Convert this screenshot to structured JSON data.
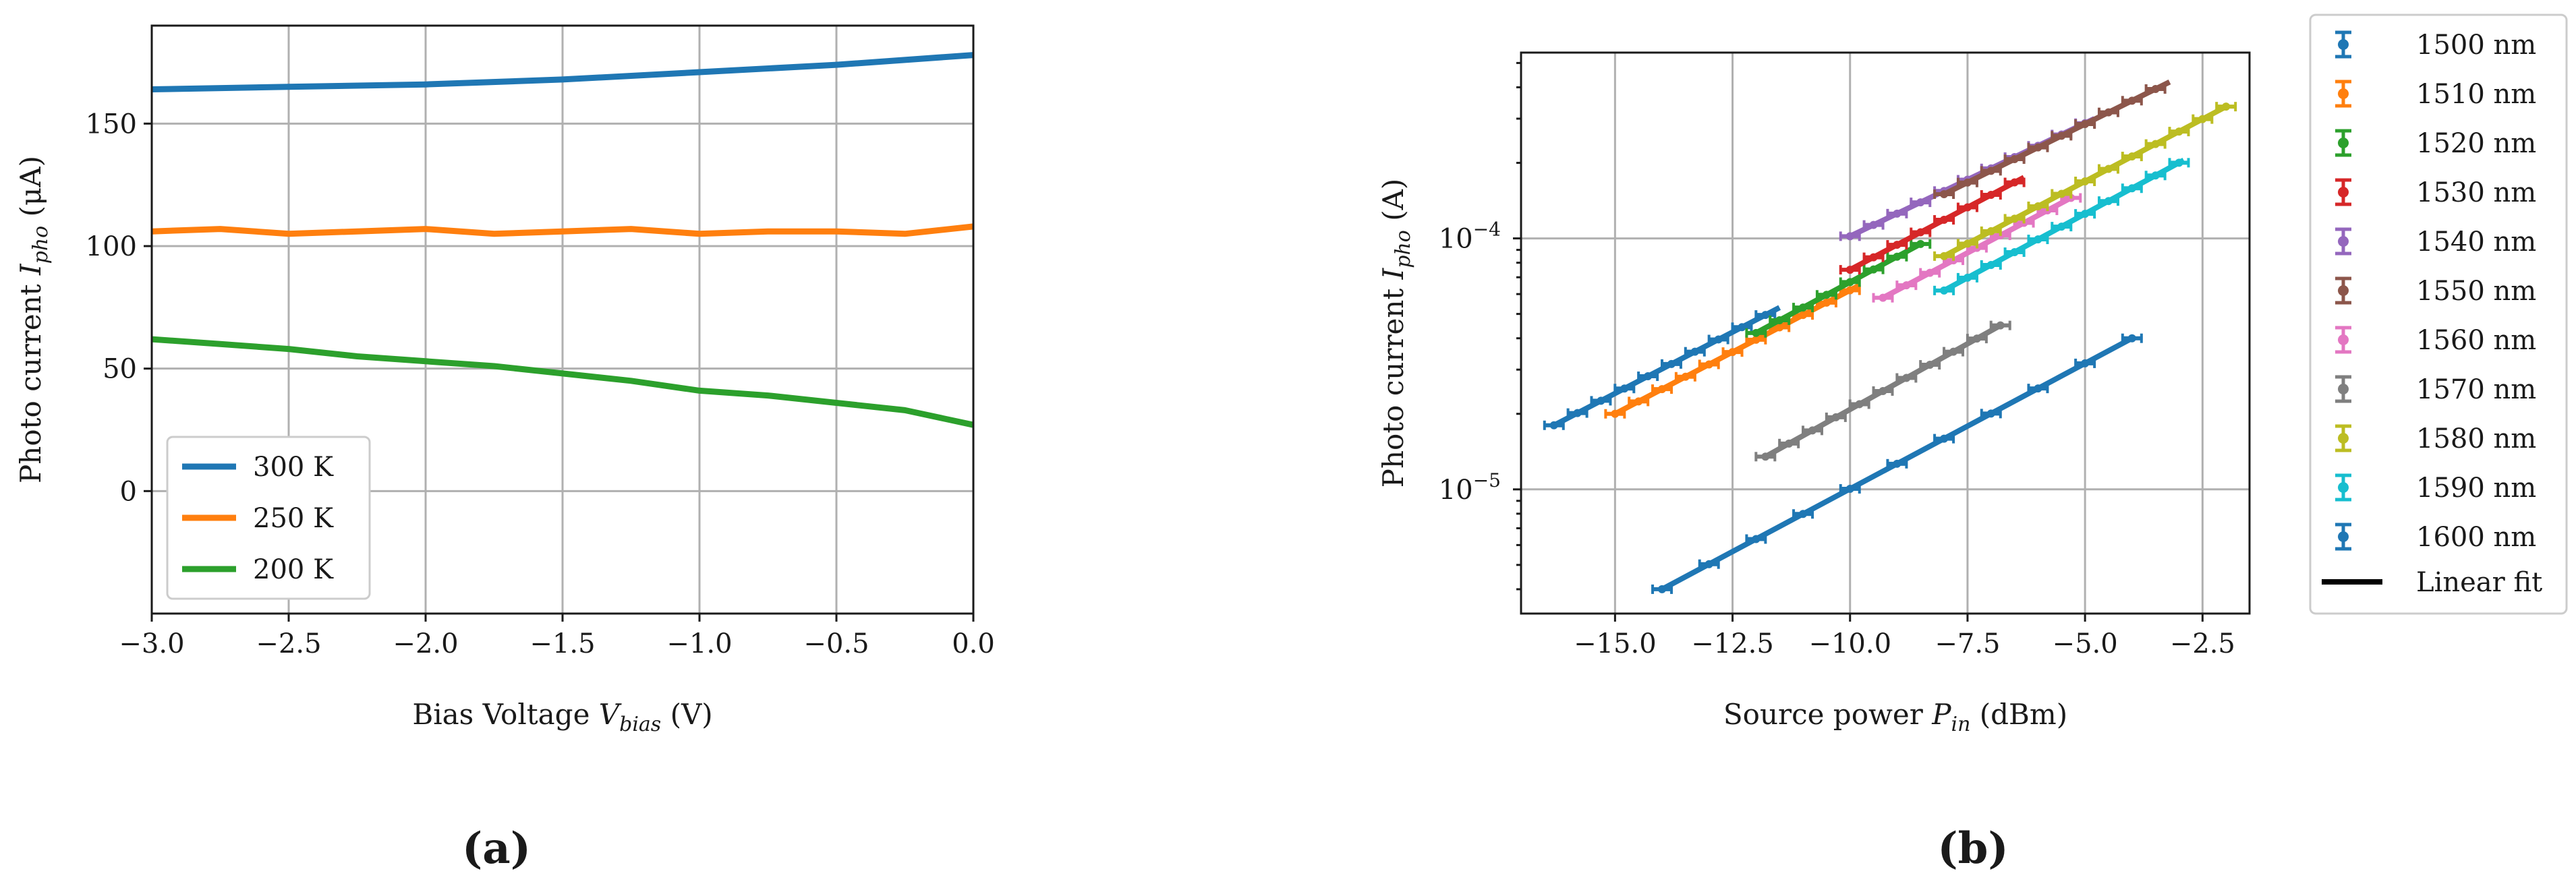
{
  "chart_data": [
    {
      "id": "a",
      "type": "line",
      "panel_label": "(a)",
      "xlabel": {
        "prefix": "Bias Voltage ",
        "sym": "V",
        "sub": "bias",
        "suffix": " (V)"
      },
      "ylabel": {
        "prefix": "Photo current ",
        "sym": "I",
        "sub": "pho",
        "suffix": " (μA)"
      },
      "xlim": [
        -3.0,
        0.0
      ],
      "ylim": [
        -50,
        190
      ],
      "xticks": [
        -3.0,
        -2.5,
        -2.0,
        -1.5,
        -1.0,
        -0.5,
        0.0
      ],
      "xtick_labels": [
        "−3.0",
        "−2.5",
        "−2.0",
        "−1.5",
        "−1.0",
        "−0.5",
        "0.0"
      ],
      "yticks": [
        0,
        50,
        100,
        150
      ],
      "ytick_labels": [
        "0",
        "50",
        "100",
        "150"
      ],
      "grid": true,
      "legend_position": "lower-left",
      "series": [
        {
          "name": "300 K",
          "color": "#1f77b4",
          "x": [
            -3.0,
            -2.5,
            -2.0,
            -1.5,
            -1.0,
            -0.5,
            0.0
          ],
          "y": [
            164,
            165,
            166,
            168,
            171,
            174,
            178
          ]
        },
        {
          "name": "250 K",
          "color": "#ff7f0e",
          "x": [
            -3.0,
            -2.75,
            -2.5,
            -2.25,
            -2.0,
            -1.75,
            -1.5,
            -1.25,
            -1.0,
            -0.75,
            -0.5,
            -0.25,
            0.0
          ],
          "y": [
            106,
            107,
            105,
            106,
            107,
            105,
            106,
            107,
            105,
            106,
            106,
            105,
            108
          ]
        },
        {
          "name": "200 K",
          "color": "#2ca02c",
          "x": [
            -3.0,
            -2.75,
            -2.5,
            -2.25,
            -2.0,
            -1.75,
            -1.5,
            -1.25,
            -1.0,
            -0.75,
            -0.5,
            -0.25,
            0.0
          ],
          "y": [
            62,
            60,
            58,
            55,
            53,
            51,
            48,
            45,
            41,
            39,
            36,
            33,
            27
          ]
        }
      ]
    },
    {
      "id": "b",
      "type": "line",
      "yscale": "log",
      "panel_label": "(b)",
      "xlabel": {
        "prefix": "Source power ",
        "sym": "P",
        "sub": "in",
        "suffix": " (dBm)"
      },
      "ylabel": {
        "prefix": "Photo current ",
        "sym": "I",
        "sub": "pho",
        "suffix": " (A)"
      },
      "xlim": [
        -17.0,
        -1.5
      ],
      "ylim": [
        3.2e-06,
        0.00055
      ],
      "xticks": [
        -15.0,
        -12.5,
        -10.0,
        -7.5,
        -5.0,
        -2.5
      ],
      "xtick_labels": [
        "−15.0",
        "−12.5",
        "−10.0",
        "−7.5",
        "−5.0",
        "−2.5"
      ],
      "yticks": [
        1e-05,
        0.0001
      ],
      "ytick_labels": [
        {
          "base": "10",
          "exp": "−5"
        },
        {
          "base": "10",
          "exp": "−4"
        }
      ],
      "grid": true,
      "legend_position": "outside-right",
      "series": [
        {
          "name": "1500 nm",
          "color": "#1f77b4",
          "x_start": -16.3,
          "x_end": -11.5,
          "y_start": 1.8e-05,
          "y_end": 5.3e-05
        },
        {
          "name": "1510 nm",
          "color": "#ff7f0e",
          "x_start": -15.0,
          "x_end": -9.8,
          "y_start": 2e-05,
          "y_end": 6.5e-05
        },
        {
          "name": "1520 nm",
          "color": "#2ca02c",
          "x_start": -12.0,
          "x_end": -8.5,
          "y_start": 4.2e-05,
          "y_end": 9.5e-05
        },
        {
          "name": "1530 nm",
          "color": "#d62728",
          "x_start": -10.0,
          "x_end": -6.3,
          "y_start": 7.5e-05,
          "y_end": 0.000175
        },
        {
          "name": "1540 nm",
          "color": "#9467bd",
          "x_start": -10.0,
          "x_end": -4.8,
          "y_start": 0.000102,
          "y_end": 0.0003
        },
        {
          "name": "1550 nm",
          "color": "#8c564b",
          "x_start": -8.0,
          "x_end": -3.2,
          "y_start": 0.00015,
          "y_end": 0.00042
        },
        {
          "name": "1560 nm",
          "color": "#e377c2",
          "x_start": -9.3,
          "x_end": -5.3,
          "y_start": 5.8e-05,
          "y_end": 0.000145
        },
        {
          "name": "1570 nm",
          "color": "#7f7f7f",
          "x_start": -11.8,
          "x_end": -6.8,
          "y_start": 1.35e-05,
          "y_end": 4.5e-05
        },
        {
          "name": "1580 nm",
          "color": "#bcbd22",
          "x_start": -8.0,
          "x_end": -2.0,
          "y_start": 8.5e-05,
          "y_end": 0.000335
        },
        {
          "name": "1590 nm",
          "color": "#17becf",
          "x_start": -8.0,
          "x_end": -2.9,
          "y_start": 6.2e-05,
          "y_end": 0.000205
        },
        {
          "name": "1600 nm",
          "color": "#1f77b4",
          "x_start": -14.0,
          "x_end": -4.0,
          "y_start": 4e-06,
          "y_end": 4e-05
        }
      ],
      "linear_fit_label": "Linear fit",
      "linear_fit_color": "#000000"
    }
  ]
}
